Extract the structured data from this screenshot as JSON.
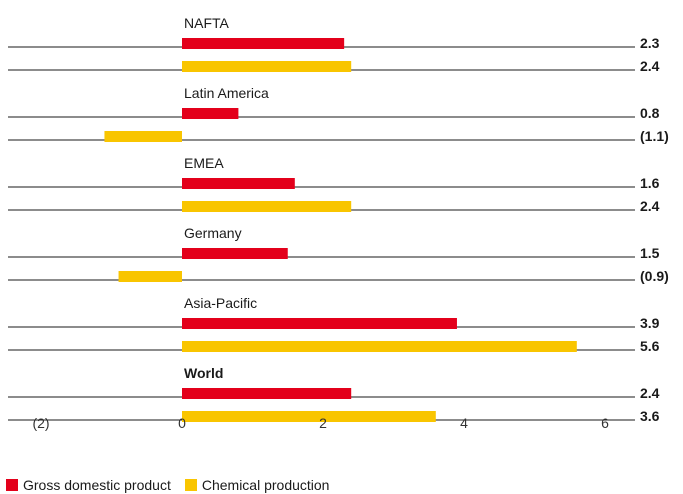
{
  "colors": {
    "gdp": "#e3001b",
    "chem": "#f9c500",
    "line": "#1a1a1a"
  },
  "legend": {
    "gdp_label": "Gross domestic product",
    "chem_label": "Chemical production"
  },
  "chart_data": {
    "type": "bar",
    "orientation": "horizontal",
    "categories": [
      "NAFTA",
      "Latin America",
      "EMEA",
      "Germany",
      "Asia-Pacific",
      "World"
    ],
    "series": [
      {
        "name": "Gross domestic product",
        "values": [
          2.3,
          0.8,
          1.6,
          1.5,
          3.9,
          2.4
        ],
        "labels": [
          "2.3",
          "0.8",
          "1.6",
          "1.5",
          "3.9",
          "2.4"
        ]
      },
      {
        "name": "Chemical production",
        "values": [
          2.4,
          -1.1,
          2.4,
          -0.9,
          5.6,
          3.6
        ],
        "labels": [
          "2.4",
          "(1.1)",
          "2.4",
          "(0.9)",
          "5.6",
          "3.6"
        ]
      }
    ],
    "xlim": [
      -2,
      6
    ],
    "xticks": [
      -2,
      0,
      2,
      4,
      6
    ],
    "xtick_labels": [
      "(2)",
      "0",
      "2",
      "4",
      "6"
    ],
    "bold_categories": [
      "World"
    ],
    "grid": false,
    "legend_position": "bottom-left"
  }
}
